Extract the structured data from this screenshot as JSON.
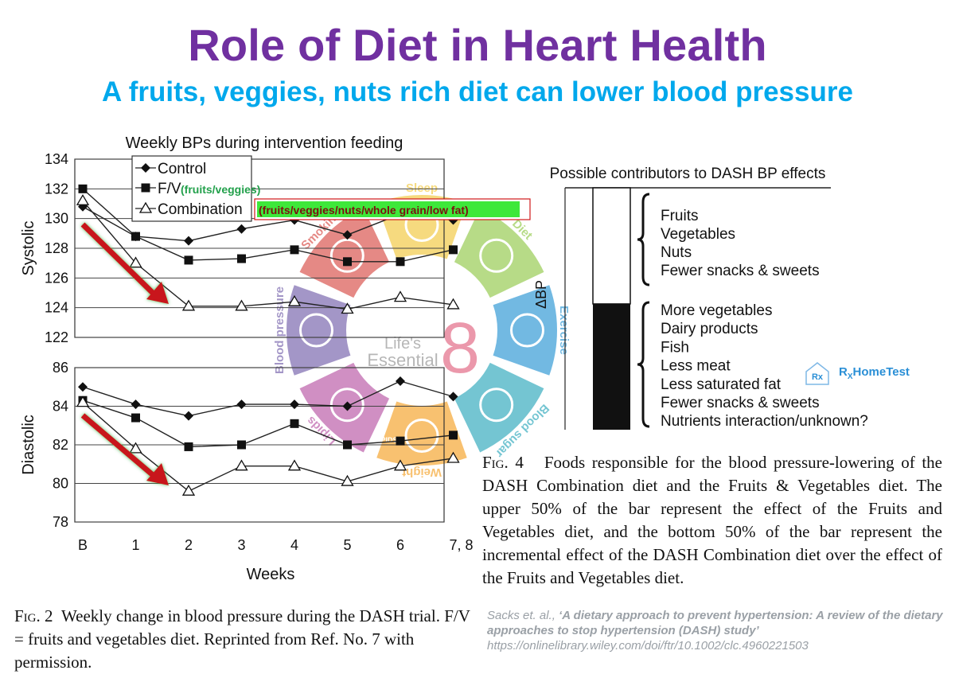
{
  "header": {
    "title": "Role of Diet in Heart Health",
    "subtitle": "A fruits, veggies, nuts rich diet can lower blood pressure"
  },
  "chart_data": [
    {
      "type": "line",
      "title": "Weekly BPs during intervention feeding",
      "xlabel": "Weeks",
      "categories": [
        "B",
        "1",
        "2",
        "3",
        "4",
        "5",
        "6",
        "7, 8"
      ],
      "panels": [
        {
          "ylabel": "Systolic",
          "ylim": [
            122,
            134
          ],
          "yticks": [
            122,
            124,
            126,
            128,
            130,
            132,
            134
          ],
          "series": [
            {
              "name": "Control",
              "marker": "diamond",
              "values": [
                130.8,
                128.8,
                128.5,
                129.3,
                129.9,
                128.9,
                130.3,
                129.9
              ]
            },
            {
              "name": "F/V",
              "marker": "square",
              "values": [
                132.0,
                128.8,
                127.2,
                127.3,
                127.9,
                127.1,
                127.1,
                127.9
              ]
            },
            {
              "name": "Combination",
              "marker": "triangle",
              "values": [
                131.2,
                127.0,
                124.1,
                124.1,
                124.4,
                123.9,
                124.7,
                124.2
              ]
            }
          ]
        },
        {
          "ylabel": "Diastolic",
          "ylim": [
            78,
            86
          ],
          "yticks": [
            78,
            80,
            82,
            84,
            86
          ],
          "series": [
            {
              "name": "Control",
              "marker": "diamond",
              "values": [
                85.0,
                84.1,
                83.5,
                84.1,
                84.1,
                84.0,
                85.3,
                84.5
              ]
            },
            {
              "name": "F/V",
              "marker": "square",
              "values": [
                84.3,
                83.4,
                81.9,
                82.0,
                83.1,
                82.0,
                82.2,
                82.5
              ]
            },
            {
              "name": "Combination",
              "marker": "triangle",
              "values": [
                84.2,
                81.8,
                79.6,
                80.9,
                80.9,
                80.1,
                80.9,
                81.3
              ]
            }
          ]
        }
      ],
      "legend": {
        "placement": "top-left",
        "entries": [
          "Control",
          "F/V",
          "Combination"
        ],
        "notes": [
          "(fruits/veggies)",
          "(fruits/veggies/nuts/whole grain/low fat)"
        ]
      },
      "annotations": [
        "red-green downward arrows in both panels"
      ]
    },
    {
      "type": "bar",
      "title": "Possible contributors to DASH BP effects",
      "ylabel": "ΔBP",
      "categories": [
        "Fruits & Vegetables diet effect",
        "DASH Combination incremental effect"
      ],
      "values": [
        50,
        50
      ],
      "upper_group": [
        "Fruits",
        "Vegetables",
        "Nuts",
        "Fewer snacks & sweets"
      ],
      "lower_group": [
        "More vegetables",
        "Dairy products",
        "Fish",
        "Less meat",
        "Less saturated fat",
        "Fewer snacks & sweets",
        "Nutrients interaction/unknown?"
      ]
    }
  ],
  "overlay": {
    "center_lines": [
      "Life's",
      "Essential"
    ],
    "center_number": "8",
    "segments": [
      "Sleep",
      "Diet",
      "Exercise",
      "Blood sugar",
      "Weight",
      "Lipids",
      "Blood pressure",
      "Smoking"
    ],
    "lipids_badge": "LIPIDS",
    "colors": [
      "#f2c431",
      "#8cc63f",
      "#1c8fd1",
      "#20a3b8",
      "#f59c1a",
      "#b44ba0",
      "#6c57a6",
      "#d6423c"
    ]
  },
  "captions": {
    "fig2_label": "Fig. 2",
    "fig2_text": "Weekly change in blood pressure during the DASH trial. F/V = fruits and vegetables diet. Reprinted from Ref. No. 7 with permission.",
    "fig4_label": "Fig. 4",
    "fig4_text": "Foods responsible for the blood pressure-lowering of the DASH Combination diet and the Fruits & Vegetables diet. The upper 50% of the bar represent the effect of the Fruits and Vegetables diet, and the bottom 50% of the bar represent the incremental effect of the DASH Combination diet over the effect of the Fruits and Vegetables diet."
  },
  "citation": {
    "authors": "Sacks et. al., ",
    "title": "‘A dietary approach to prevent hypertension: A review of the dietary approaches to stop hypertension (DASH) study’",
    "url": " https://onlinelibrary.wiley.com/doi/ftr/10.1002/clc.4960221503"
  },
  "badge": {
    "rx_icon": "Rx",
    "label": "HomeTest",
    "label_prefix": "R",
    "label_sub": "X"
  },
  "colors": {
    "title": "#7030a0",
    "subtitle": "#00a8ec",
    "arrow_red": "#c8161d",
    "arrow_glow": "#3cb44b",
    "legend_note": "#22a04b",
    "highlight": "#3ee83a",
    "highlight_border": "#d0191b"
  }
}
